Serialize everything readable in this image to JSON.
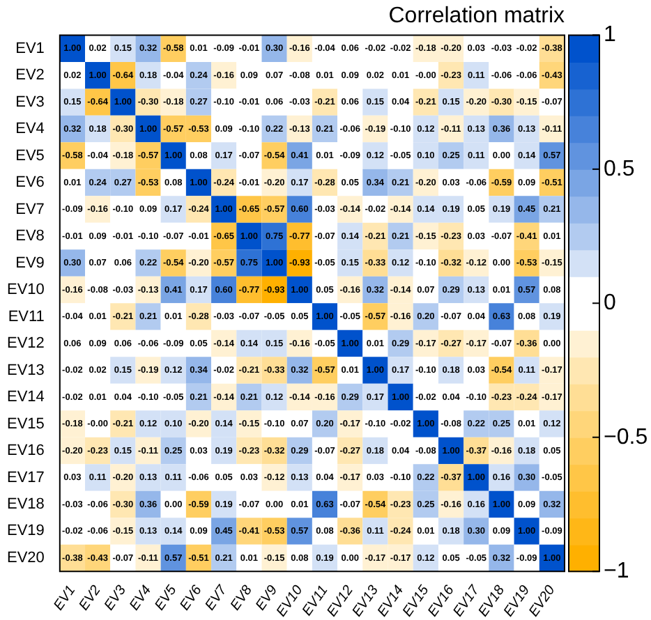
{
  "chart_data": {
    "type": "heatmap",
    "title": "Correlation matrix",
    "categories": [
      "EV1",
      "EV2",
      "EV3",
      "EV4",
      "EV5",
      "EV6",
      "EV7",
      "EV8",
      "EV9",
      "EV10",
      "EV11",
      "EV12",
      "EV13",
      "EV14",
      "EV15",
      "EV16",
      "EV17",
      "EV18",
      "EV19",
      "EV20"
    ],
    "y_categories": [
      "EV1",
      "EV2",
      "EV3",
      "EV4",
      "EV5",
      "EV6",
      "EV7",
      "EV8",
      "EV9",
      "EV10",
      "EV11",
      "EV12",
      "EV13",
      "EV14",
      "EV15",
      "EV16",
      "EV17",
      "EV18",
      "EV19",
      "EV20"
    ],
    "cells": [
      [
        1.0,
        0.02,
        0.15,
        0.32,
        -0.58,
        0.01,
        -0.09,
        -0.01,
        0.3,
        -0.16,
        -0.04,
        0.06,
        -0.02,
        -0.02,
        -0.18,
        -0.2,
        0.03,
        -0.03,
        -0.02,
        -0.38
      ],
      [
        0.02,
        1.0,
        -0.64,
        0.18,
        -0.04,
        0.24,
        -0.16,
        0.09,
        0.07,
        -0.08,
        0.01,
        0.09,
        0.02,
        0.01,
        -0.0,
        -0.23,
        0.11,
        -0.06,
        -0.06,
        -0.43
      ],
      [
        0.15,
        -0.64,
        1.0,
        -0.3,
        -0.18,
        0.27,
        -0.1,
        -0.01,
        0.06,
        -0.03,
        -0.21,
        0.06,
        0.15,
        0.04,
        -0.21,
        0.15,
        -0.2,
        -0.3,
        -0.15,
        -0.07
      ],
      [
        0.32,
        0.18,
        -0.3,
        1.0,
        -0.57,
        -0.53,
        0.09,
        -0.1,
        0.22,
        -0.13,
        0.21,
        -0.06,
        -0.19,
        -0.1,
        0.12,
        -0.11,
        0.13,
        0.36,
        0.13,
        -0.11
      ],
      [
        -0.58,
        -0.04,
        -0.18,
        -0.57,
        1.0,
        0.08,
        0.17,
        -0.07,
        -0.54,
        0.41,
        0.01,
        -0.09,
        0.12,
        -0.05,
        0.1,
        0.25,
        0.11,
        0.0,
        0.14,
        0.57
      ],
      [
        0.01,
        0.24,
        0.27,
        -0.53,
        0.08,
        1.0,
        -0.24,
        -0.01,
        -0.2,
        0.17,
        -0.28,
        0.05,
        0.34,
        0.21,
        -0.2,
        0.03,
        -0.06,
        -0.59,
        0.09,
        -0.51
      ],
      [
        -0.09,
        -0.16,
        -0.1,
        0.09,
        0.17,
        -0.24,
        1.0,
        -0.65,
        -0.57,
        0.6,
        -0.03,
        -0.14,
        -0.02,
        -0.14,
        0.14,
        0.19,
        0.05,
        0.19,
        0.45,
        0.21
      ],
      [
        -0.01,
        0.09,
        -0.01,
        -0.1,
        -0.07,
        -0.01,
        -0.65,
        1.0,
        0.75,
        -0.77,
        -0.07,
        0.14,
        -0.21,
        0.21,
        -0.15,
        -0.23,
        0.03,
        -0.07,
        -0.41,
        0.01
      ],
      [
        0.3,
        0.07,
        0.06,
        0.22,
        -0.54,
        -0.2,
        -0.57,
        0.75,
        1.0,
        -0.93,
        -0.05,
        0.15,
        -0.33,
        0.12,
        -0.1,
        -0.32,
        -0.12,
        0.0,
        -0.53,
        -0.15
      ],
      [
        -0.16,
        -0.08,
        -0.03,
        -0.13,
        0.41,
        0.17,
        0.6,
        -0.77,
        -0.93,
        1.0,
        0.05,
        -0.16,
        0.32,
        -0.14,
        0.07,
        0.29,
        0.13,
        0.01,
        0.57,
        0.08
      ],
      [
        -0.04,
        0.01,
        -0.21,
        0.21,
        0.01,
        -0.28,
        -0.03,
        -0.07,
        -0.05,
        0.05,
        1.0,
        -0.05,
        -0.57,
        -0.16,
        0.2,
        -0.07,
        0.04,
        0.63,
        0.08,
        0.19
      ],
      [
        0.06,
        0.09,
        0.06,
        -0.06,
        -0.09,
        0.05,
        -0.14,
        0.14,
        0.15,
        -0.16,
        -0.05,
        1.0,
        0.01,
        0.29,
        -0.17,
        -0.27,
        -0.17,
        -0.07,
        -0.36,
        0.0
      ],
      [
        -0.02,
        0.02,
        0.15,
        -0.19,
        0.12,
        0.34,
        -0.02,
        -0.21,
        -0.33,
        0.32,
        -0.57,
        0.01,
        1.0,
        0.17,
        -0.1,
        0.18,
        0.03,
        -0.54,
        0.11,
        -0.17
      ],
      [
        -0.02,
        0.01,
        0.04,
        -0.1,
        -0.05,
        0.21,
        -0.14,
        0.21,
        0.12,
        -0.14,
        -0.16,
        0.29,
        0.17,
        1.0,
        -0.02,
        0.04,
        -0.1,
        -0.23,
        -0.24,
        -0.17
      ],
      [
        -0.18,
        -0.0,
        -0.21,
        0.12,
        0.1,
        -0.2,
        0.14,
        -0.15,
        -0.1,
        0.07,
        0.2,
        -0.17,
        -0.1,
        -0.02,
        1.0,
        -0.08,
        0.22,
        0.25,
        0.01,
        0.12
      ],
      [
        -0.2,
        -0.23,
        0.15,
        -0.11,
        0.25,
        0.03,
        0.19,
        -0.23,
        -0.32,
        0.29,
        -0.07,
        -0.27,
        0.18,
        0.04,
        -0.08,
        1.0,
        -0.37,
        -0.16,
        0.18,
        0.05
      ],
      [
        0.03,
        0.11,
        -0.2,
        0.13,
        0.11,
        -0.06,
        0.05,
        0.03,
        -0.12,
        0.13,
        0.04,
        -0.17,
        0.03,
        -0.1,
        0.22,
        -0.37,
        1.0,
        0.16,
        0.3,
        -0.05
      ],
      [
        -0.03,
        -0.06,
        -0.3,
        0.36,
        0.0,
        -0.59,
        0.19,
        -0.07,
        0.0,
        0.01,
        0.63,
        -0.07,
        -0.54,
        -0.23,
        0.25,
        -0.16,
        0.16,
        1.0,
        0.09,
        0.32
      ],
      [
        -0.02,
        -0.06,
        -0.15,
        0.13,
        0.14,
        0.09,
        0.45,
        -0.41,
        -0.53,
        0.57,
        0.08,
        -0.36,
        0.11,
        -0.24,
        0.01,
        0.18,
        0.3,
        0.09,
        1.0,
        -0.09
      ],
      [
        -0.38,
        -0.43,
        -0.07,
        -0.11,
        0.57,
        -0.51,
        0.21,
        0.01,
        -0.15,
        0.08,
        0.19,
        0.0,
        -0.17,
        -0.17,
        0.12,
        0.05,
        -0.05,
        0.32,
        -0.09,
        1.0
      ]
    ],
    "cell_labels": [
      [
        "1.00",
        "0.02",
        "0.15",
        "0.32",
        "-0.58",
        "0.01",
        "-0.09",
        "-0.01",
        "0.30",
        "-0.16",
        "-0.04",
        "0.06",
        "-0.02",
        "-0.02",
        "-0.18",
        "-0.20",
        "0.03",
        "-0.03",
        "-0.02",
        "-0.38"
      ],
      [
        "0.02",
        "1.00",
        "-0.64",
        "0.18",
        "-0.04",
        "0.24",
        "-0.16",
        "0.09",
        "0.07",
        "-0.08",
        "0.01",
        "0.09",
        "0.02",
        "0.01",
        "-0.00",
        "-0.23",
        "0.11",
        "-0.06",
        "-0.06",
        "-0.43"
      ],
      [
        "0.15",
        "-0.64",
        "1.00",
        "-0.30",
        "-0.18",
        "0.27",
        "-0.10",
        "-0.01",
        "0.06",
        "-0.03",
        "-0.21",
        "0.06",
        "0.15",
        "0.04",
        "-0.21",
        "0.15",
        "-0.20",
        "-0.30",
        "-0.15",
        "-0.07"
      ],
      [
        "0.32",
        "0.18",
        "-0.30",
        "1.00",
        "-0.57",
        "-0.53",
        "0.09",
        "-0.10",
        "0.22",
        "-0.13",
        "0.21",
        "-0.06",
        "-0.19",
        "-0.10",
        "0.12",
        "-0.11",
        "0.13",
        "0.36",
        "0.13",
        "-0.11"
      ],
      [
        "-0.58",
        "-0.04",
        "-0.18",
        "-0.57",
        "1.00",
        "0.08",
        "0.17",
        "-0.07",
        "-0.54",
        "0.41",
        "0.01",
        "-0.09",
        "0.12",
        "-0.05",
        "0.10",
        "0.25",
        "0.11",
        "0.00",
        "0.14",
        "0.57"
      ],
      [
        "0.01",
        "0.24",
        "0.27",
        "-0.53",
        "0.08",
        "1.00",
        "-0.24",
        "-0.01",
        "-0.20",
        "0.17",
        "-0.28",
        "0.05",
        "0.34",
        "0.21",
        "-0.20",
        "0.03",
        "-0.06",
        "-0.59",
        "0.09",
        "-0.51"
      ],
      [
        "-0.09",
        "-0.16",
        "-0.10",
        "0.09",
        "0.17",
        "-0.24",
        "1.00",
        "-0.65",
        "-0.57",
        "0.60",
        "-0.03",
        "-0.14",
        "-0.02",
        "-0.14",
        "0.14",
        "0.19",
        "0.05",
        "0.19",
        "0.45",
        "0.21"
      ],
      [
        "-0.01",
        "0.09",
        "-0.01",
        "-0.10",
        "-0.07",
        "-0.01",
        "-0.65",
        "1.00",
        "0.75",
        "-0.77",
        "-0.07",
        "0.14",
        "-0.21",
        "0.21",
        "-0.15",
        "-0.23",
        "0.03",
        "-0.07",
        "-0.41",
        "0.01"
      ],
      [
        "0.30",
        "0.07",
        "0.06",
        "0.22",
        "-0.54",
        "-0.20",
        "-0.57",
        "0.75",
        "1.00",
        "-0.93",
        "-0.05",
        "0.15",
        "-0.33",
        "0.12",
        "-0.10",
        "-0.32",
        "-0.12",
        "0.00",
        "-0.53",
        "-0.15"
      ],
      [
        "-0.16",
        "-0.08",
        "-0.03",
        "-0.13",
        "0.41",
        "0.17",
        "0.60",
        "-0.77",
        "-0.93",
        "1.00",
        "0.05",
        "-0.16",
        "0.32",
        "-0.14",
        "0.07",
        "0.29",
        "0.13",
        "0.01",
        "0.57",
        "0.08"
      ],
      [
        "-0.04",
        "0.01",
        "-0.21",
        "0.21",
        "0.01",
        "-0.28",
        "-0.03",
        "-0.07",
        "-0.05",
        "0.05",
        "1.00",
        "-0.05",
        "-0.57",
        "-0.16",
        "0.20",
        "-0.07",
        "0.04",
        "0.63",
        "0.08",
        "0.19"
      ],
      [
        "0.06",
        "0.09",
        "0.06",
        "-0.06",
        "-0.09",
        "0.05",
        "-0.14",
        "0.14",
        "0.15",
        "-0.16",
        "-0.05",
        "1.00",
        "0.01",
        "0.29",
        "-0.17",
        "-0.27",
        "-0.17",
        "-0.07",
        "-0.36",
        "0.00"
      ],
      [
        "-0.02",
        "0.02",
        "0.15",
        "-0.19",
        "0.12",
        "0.34",
        "-0.02",
        "-0.21",
        "-0.33",
        "0.32",
        "-0.57",
        "0.01",
        "1.00",
        "0.17",
        "-0.10",
        "0.18",
        "0.03",
        "-0.54",
        "0.11",
        "-0.17"
      ],
      [
        "-0.02",
        "0.01",
        "0.04",
        "-0.10",
        "-0.05",
        "0.21",
        "-0.14",
        "0.21",
        "0.12",
        "-0.14",
        "-0.16",
        "0.29",
        "0.17",
        "1.00",
        "-0.02",
        "0.04",
        "-0.10",
        "-0.23",
        "-0.24",
        "-0.17"
      ],
      [
        "-0.18",
        "-0.00",
        "-0.21",
        "0.12",
        "0.10",
        "-0.20",
        "0.14",
        "-0.15",
        "-0.10",
        "0.07",
        "0.20",
        "-0.17",
        "-0.10",
        "-0.02",
        "1.00",
        "-0.08",
        "0.22",
        "0.25",
        "0.01",
        "0.12"
      ],
      [
        "-0.20",
        "-0.23",
        "0.15",
        "-0.11",
        "0.25",
        "0.03",
        "0.19",
        "-0.23",
        "-0.32",
        "0.29",
        "-0.07",
        "-0.27",
        "0.18",
        "0.04",
        "-0.08",
        "1.00",
        "-0.37",
        "-0.16",
        "0.18",
        "0.05"
      ],
      [
        "0.03",
        "0.11",
        "-0.20",
        "0.13",
        "0.11",
        "-0.06",
        "0.05",
        "0.03",
        "-0.12",
        "0.13",
        "0.04",
        "-0.17",
        "0.03",
        "-0.10",
        "0.22",
        "-0.37",
        "1.00",
        "0.16",
        "0.30",
        "-0.05"
      ],
      [
        "-0.03",
        "-0.06",
        "-0.30",
        "0.36",
        "0.00",
        "-0.59",
        "0.19",
        "-0.07",
        "0.00",
        "0.01",
        "0.63",
        "-0.07",
        "-0.54",
        "-0.23",
        "0.25",
        "-0.16",
        "0.16",
        "1.00",
        "0.09",
        "0.32"
      ],
      [
        "-0.02",
        "-0.06",
        "-0.15",
        "0.13",
        "0.14",
        "0.09",
        "0.45",
        "-0.41",
        "-0.53",
        "0.57",
        "0.08",
        "-0.36",
        "0.11",
        "-0.24",
        "0.01",
        "0.18",
        "0.30",
        "0.09",
        "1.00",
        "-0.09"
      ],
      [
        "-0.38",
        "-0.43",
        "-0.07",
        "-0.11",
        "0.57",
        "-0.51",
        "0.21",
        "0.01",
        "-0.15",
        "0.08",
        "0.19",
        "0.00",
        "-0.17",
        "-0.17",
        "0.12",
        "0.05",
        "-0.05",
        "0.32",
        "-0.09",
        "1.00"
      ]
    ],
    "clim": [
      -1,
      1
    ],
    "cticks": [
      {
        "value": -1,
        "label": "−1"
      },
      {
        "value": -0.5,
        "label": "−0.5"
      },
      0,
      0.5,
      1
    ]
  }
}
